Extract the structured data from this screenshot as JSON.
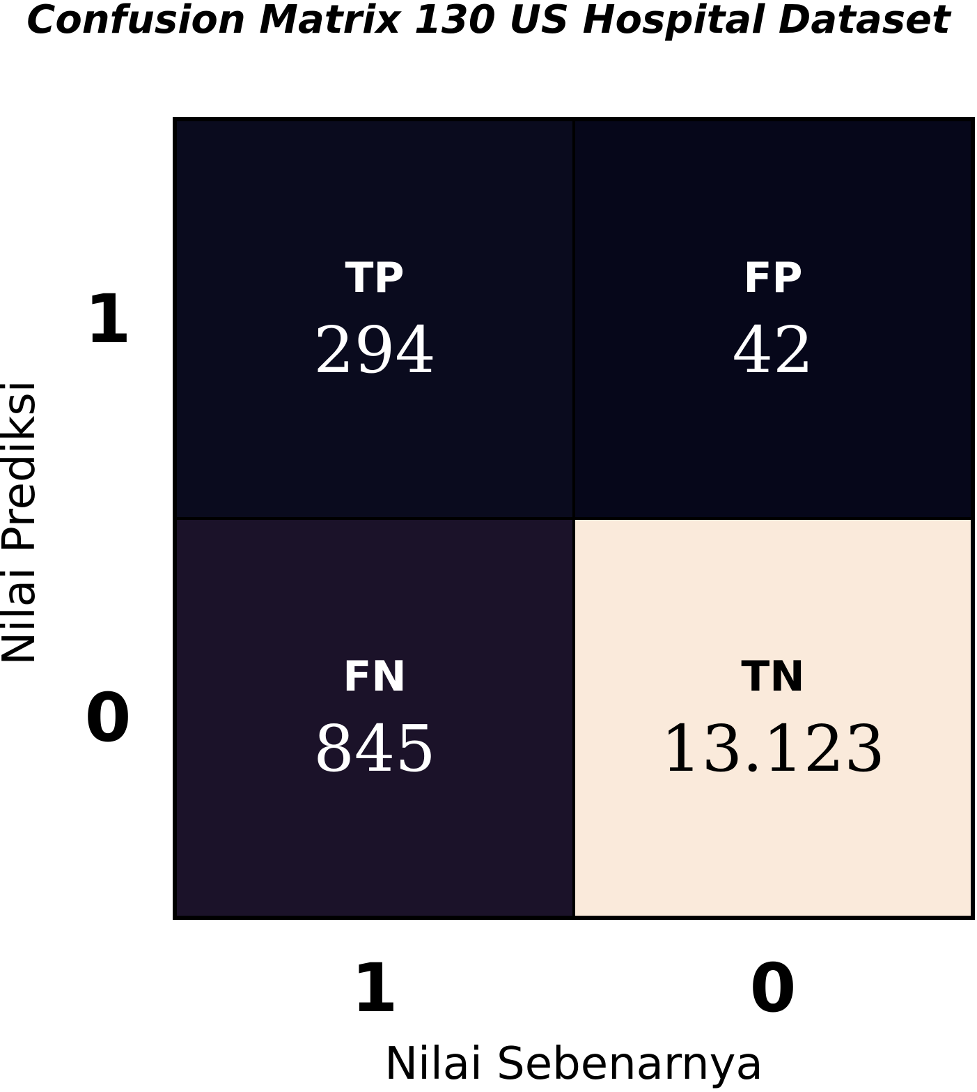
{
  "chart_data": {
    "type": "heatmap",
    "title": "Confusion Matrix 130 US Hospital Dataset",
    "xlabel": "Nilai Sebenarnya",
    "ylabel": "Nilai Prediksi",
    "x_categories": [
      "1",
      "0"
    ],
    "y_categories": [
      "1",
      "0"
    ],
    "cells": [
      {
        "row": 0,
        "col": 0,
        "label": "TP",
        "value": 294,
        "display": "294",
        "color": "#0a0b1e",
        "text_color": "#ffffff"
      },
      {
        "row": 0,
        "col": 1,
        "label": "FP",
        "value": 42,
        "display": "42",
        "color": "#06071a",
        "text_color": "#ffffff"
      },
      {
        "row": 1,
        "col": 0,
        "label": "FN",
        "value": 845,
        "display": "845",
        "color": "#1b1229",
        "text_color": "#ffffff"
      },
      {
        "row": 1,
        "col": 1,
        "label": "TN",
        "value": 13123,
        "display": "13.123",
        "color": "#faeadb",
        "text_color": "#000000"
      }
    ],
    "colormap": "dark-to-cream",
    "grid": false
  }
}
